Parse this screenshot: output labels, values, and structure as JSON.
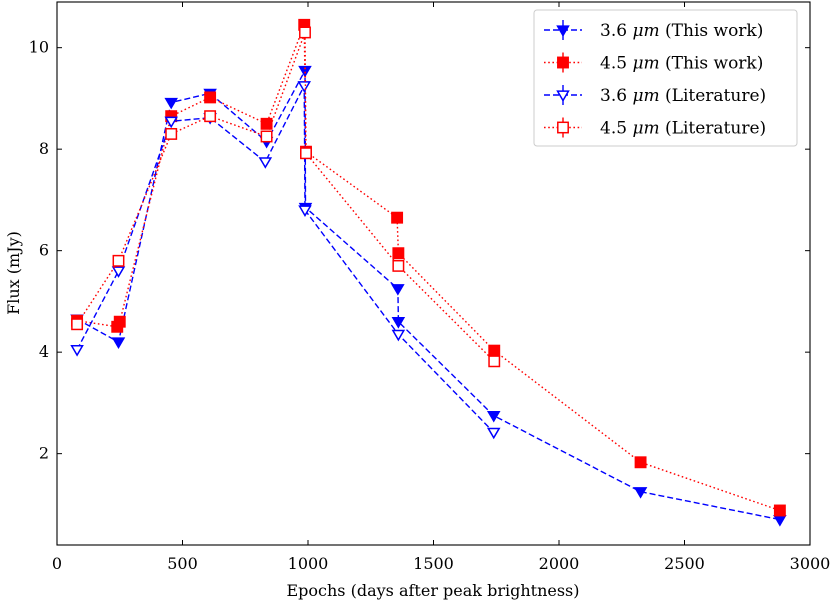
{
  "chart_data": {
    "type": "line",
    "title": "",
    "xlabel": "Epochs (days after peak brightness)",
    "ylabel": "Flux (mJy)",
    "xlim": [
      0,
      3000
    ],
    "ylim": [
      0.2,
      10.9
    ],
    "xticks": [
      0,
      500,
      1000,
      1500,
      2000,
      2500,
      3000
    ],
    "yticks": [
      2,
      4,
      6,
      8,
      10
    ],
    "grid": false,
    "legend_position": "top-right",
    "series": [
      {
        "name": "3.6 μm (This work)",
        "label_main": "3.6 ",
        "label_unit": "μm",
        "label_tail": " (This work)",
        "color": "#0000ff",
        "linestyle": "dashed",
        "marker": "triangle-down",
        "filled": true,
        "x": [
          80,
          245,
          455,
          610,
          835,
          988,
          990,
          1358,
          1360,
          1740,
          2325,
          2880
        ],
        "y": [
          4.65,
          4.2,
          8.92,
          9.1,
          8.15,
          9.55,
          6.85,
          5.25,
          4.6,
          2.75,
          1.25,
          0.7
        ]
      },
      {
        "name": "4.5 μm (This work)",
        "label_main": "4.5 ",
        "label_unit": "μm",
        "label_tail": " (This work)",
        "color": "#ff0000",
        "linestyle": "dotted",
        "marker": "square",
        "filled": true,
        "x": [
          80,
          240,
          250,
          455,
          610,
          835,
          985,
          992,
          1355,
          1360,
          1742,
          2325,
          2880
        ],
        "y": [
          4.62,
          4.5,
          4.6,
          8.65,
          9.02,
          8.5,
          10.45,
          7.95,
          6.65,
          5.95,
          4.03,
          1.83,
          0.88
        ]
      },
      {
        "name": "3.6 μm (Literature)",
        "label_main": "3.6 ",
        "label_unit": "μm",
        "label_tail": " (Literature)",
        "color": "#0000ff",
        "linestyle": "dashed",
        "marker": "triangle-down",
        "filled": false,
        "x": [
          80,
          245,
          455,
          610,
          830,
          985,
          988,
          1360,
          1740
        ],
        "y": [
          4.05,
          5.6,
          8.55,
          8.62,
          7.75,
          9.25,
          6.8,
          4.35,
          2.42
        ]
      },
      {
        "name": "4.5 μm (Literature)",
        "label_main": "4.5 ",
        "label_unit": "μm",
        "label_tail": " (Literature)",
        "color": "#ff0000",
        "linestyle": "dotted",
        "marker": "square",
        "filled": false,
        "x": [
          80,
          245,
          455,
          610,
          835,
          988,
          992,
          1360,
          1742
        ],
        "y": [
          4.55,
          5.8,
          8.3,
          8.65,
          8.25,
          10.3,
          7.92,
          5.7,
          3.82
        ]
      }
    ]
  }
}
